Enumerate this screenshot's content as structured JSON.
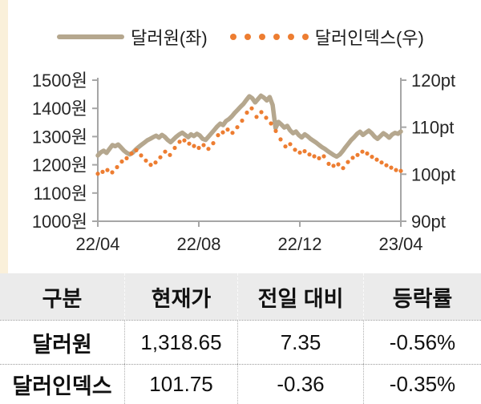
{
  "page": {
    "background": "#ffffff",
    "accent_strip_color": "#faf0da"
  },
  "legend": [
    {
      "label": "달러원(좌)",
      "type": "line",
      "color": "#b5a78e"
    },
    {
      "label": "달러인덱스(우)",
      "type": "dots",
      "color": "#ed7d31"
    }
  ],
  "chart_data": {
    "type": "line",
    "axis_color": "#a6a6a6",
    "label_color": "#262626",
    "x_ticks": [
      "22/04",
      "22/08",
      "22/12",
      "23/04"
    ],
    "y_left": {
      "min": 1000,
      "max": 1500,
      "unit": "원",
      "ticks": [
        {
          "value": 1500,
          "label": "1500원"
        },
        {
          "value": 1400,
          "label": "1400원"
        },
        {
          "value": 1300,
          "label": "1300원"
        },
        {
          "value": 1200,
          "label": "1200원"
        },
        {
          "value": 1100,
          "label": "1100원"
        },
        {
          "value": 1000,
          "label": "1000원"
        }
      ]
    },
    "y_right": {
      "min": 90,
      "max": 120,
      "unit": "pt",
      "ticks": [
        {
          "value": 120,
          "label": "120pt"
        },
        {
          "value": 110,
          "label": "110pt"
        },
        {
          "value": 100,
          "label": "100pt"
        },
        {
          "value": 90,
          "label": "90pt"
        }
      ]
    },
    "series": [
      {
        "name": "달러원(좌)",
        "axis": "left",
        "style": "line",
        "color": "#b5a78e",
        "values": [
          1233,
          1244,
          1250,
          1242,
          1256,
          1270,
          1266,
          1272,
          1261,
          1250,
          1242,
          1237,
          1243,
          1254,
          1263,
          1271,
          1279,
          1287,
          1292,
          1298,
          1303,
          1296,
          1306,
          1299,
          1288,
          1280,
          1290,
          1300,
          1308,
          1314,
          1306,
          1298,
          1308,
          1302,
          1310,
          1304,
          1292,
          1288,
          1300,
          1312,
          1324,
          1336,
          1346,
          1341,
          1355,
          1362,
          1372,
          1384,
          1395,
          1406,
          1416,
          1430,
          1443,
          1436,
          1421,
          1433,
          1445,
          1438,
          1428,
          1440,
          1412,
          1330,
          1352,
          1343,
          1332,
          1338,
          1322,
          1312,
          1318,
          1305,
          1297,
          1308,
          1301,
          1292,
          1285,
          1278,
          1270,
          1262,
          1256,
          1248,
          1241,
          1234,
          1229,
          1236,
          1248,
          1262,
          1275,
          1288,
          1298,
          1310,
          1317,
          1306,
          1314,
          1321,
          1312,
          1300,
          1292,
          1302,
          1312,
          1305,
          1296,
          1307,
          1313,
          1310,
          1318
        ]
      },
      {
        "name": "달러인덱스(우)",
        "axis": "right",
        "style": "dots",
        "color": "#ed7d31",
        "values": [
          100.1,
          100.5,
          100.9,
          100.4,
          101.5,
          102.7,
          103.4,
          104.4,
          105.1,
          104.0,
          102.9,
          102.0,
          102.5,
          103.6,
          104.8,
          104.1,
          105.6,
          106.9,
          107.2,
          106.5,
          106.0,
          105.6,
          106.2,
          105.4,
          106.6,
          108.3,
          108.9,
          109.5,
          108.8,
          110.0,
          111.4,
          113.1,
          114.0,
          112.2,
          113.2,
          112.0,
          110.8,
          109.2,
          107.4,
          105.9,
          106.4,
          105.2,
          104.6,
          104.9,
          104.2,
          103.8,
          103.4,
          103.8,
          102.2,
          101.8,
          102.1,
          101.3,
          102.6,
          103.5,
          104.1,
          104.8,
          104.4,
          103.7,
          103.1,
          102.5,
          101.9,
          101.4,
          100.9,
          100.7
        ]
      }
    ]
  },
  "table": {
    "headers": [
      "구분",
      "현재가",
      "전일 대비",
      "등락률"
    ],
    "rows": [
      {
        "label": "달러원",
        "values": [
          "1,318.65",
          "7.35",
          "-0.56%"
        ]
      },
      {
        "label": "달러인덱스",
        "values": [
          "101.75",
          "-0.36",
          "-0.35%"
        ]
      }
    ]
  }
}
